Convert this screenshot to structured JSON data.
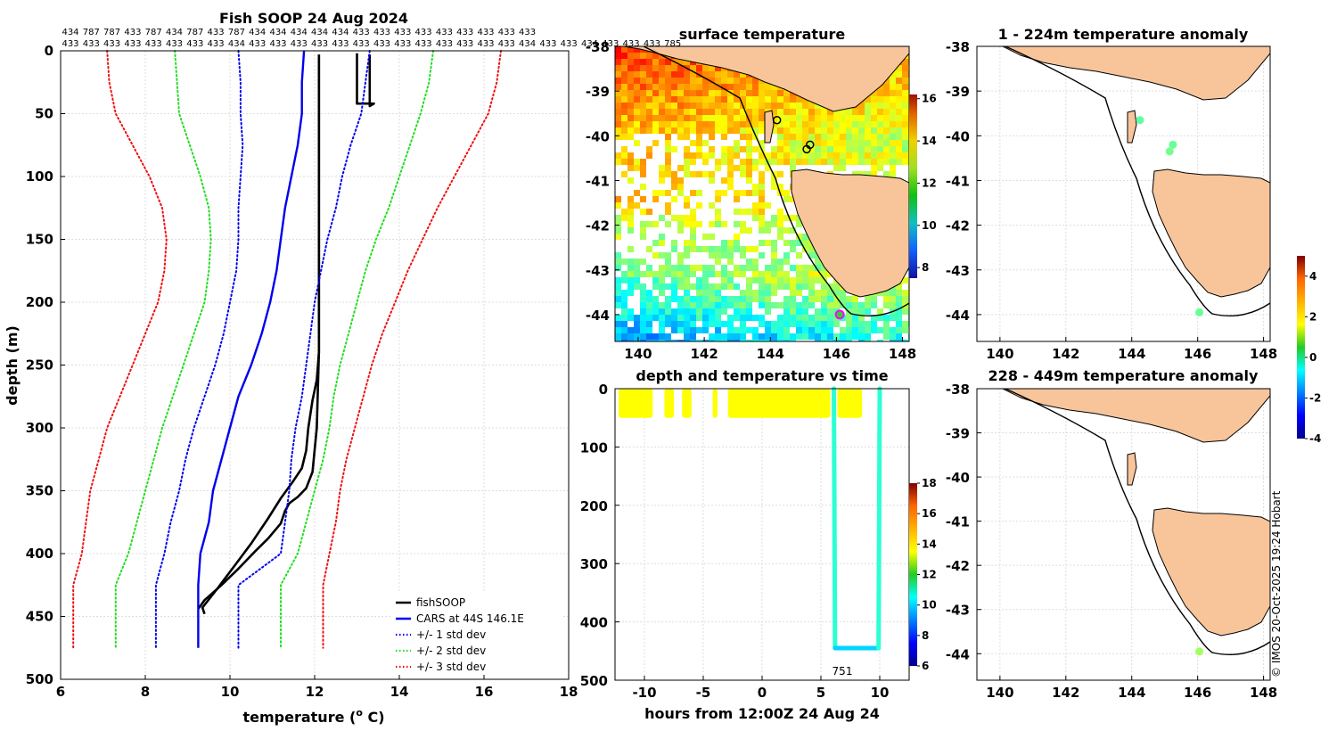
{
  "credit": "© IMOS 20-Oct-2025 19:24 Hobart",
  "chart_data": [
    {
      "type": "line",
      "title": "Fish SOOP 24 Aug 2024",
      "xlabel": "temperature (",
      "xlabel_sup": "o",
      "xlabel_end": " C)",
      "ylabel": "depth (m)",
      "xlim": [
        6,
        18
      ],
      "ylim": [
        0,
        500
      ],
      "xticks": [
        6,
        8,
        10,
        12,
        14,
        16,
        18
      ],
      "yticks": [
        0,
        50,
        100,
        150,
        200,
        250,
        300,
        350,
        400,
        450,
        500
      ],
      "grid": true,
      "legend_position": "bottom-right",
      "top_counts_row1": [
        "434",
        "787",
        "787",
        "433",
        "787",
        "434",
        "787",
        "433",
        "787",
        "434",
        "434",
        "434",
        "434",
        "434",
        "433",
        "433",
        "433",
        "433",
        "433",
        "433",
        "433",
        "433",
        "433"
      ],
      "top_counts_row2": [
        "433",
        "433",
        "433",
        "433",
        "433",
        "433",
        "433",
        "433",
        "434",
        "433",
        "433",
        "433",
        "433",
        "433",
        "433",
        "433",
        "433",
        "433",
        "433",
        "433",
        "433",
        "433",
        "434",
        "433",
        "433",
        "434",
        "433",
        "433",
        "433",
        "785"
      ],
      "series": [
        {
          "name": "fishSOOP",
          "color": "#000000",
          "style": "solid",
          "width": 2.6,
          "points": [
            [
              12.1,
              3
            ],
            [
              12.1,
              50
            ],
            [
              12.1,
              150
            ],
            [
              12.1,
              240
            ],
            [
              12.05,
              262
            ],
            [
              11.95,
              278
            ],
            [
              11.85,
              300
            ],
            [
              11.8,
              318
            ],
            [
              11.7,
              332
            ],
            [
              11.5,
              342
            ],
            [
              11.2,
              356
            ],
            [
              10.9,
              372
            ],
            [
              10.5,
              392
            ],
            [
              10.1,
              410
            ],
            [
              9.7,
              428
            ],
            [
              9.35,
              443
            ],
            [
              9.4,
              448
            ]
          ]
        },
        {
          "name": "fishSOOP",
          "color": "#000000",
          "style": "solid",
          "width": 2.6,
          "points": [
            [
              12.1,
              3
            ],
            [
              12.1,
              150
            ],
            [
              12.1,
              240
            ],
            [
              12.05,
              300
            ],
            [
              11.95,
              335
            ],
            [
              11.8,
              348
            ],
            [
              11.6,
              355
            ],
            [
              11.4,
              360
            ],
            [
              11.3,
              366
            ],
            [
              11.2,
              376
            ],
            [
              10.9,
              388
            ],
            [
              10.6,
              398
            ],
            [
              10.2,
              412
            ],
            [
              9.8,
              425
            ],
            [
              9.4,
              437
            ],
            [
              9.25,
              444
            ]
          ]
        },
        {
          "name": "fishSOOP",
          "color": "#000000",
          "style": "solid",
          "width": 2.6,
          "points": [
            [
              13.0,
              2
            ],
            [
              13.0,
              42
            ],
            [
              13.4,
              42
            ],
            [
              13.3,
              44
            ],
            [
              13.3,
              3
            ]
          ]
        },
        {
          "name": "CARS at 44S 146.1E",
          "color": "#0000ee",
          "style": "solid",
          "width": 2.4,
          "points": [
            [
              11.75,
              0
            ],
            [
              11.7,
              25
            ],
            [
              11.7,
              50
            ],
            [
              11.6,
              75
            ],
            [
              11.45,
              100
            ],
            [
              11.3,
              125
            ],
            [
              11.2,
              150
            ],
            [
              11.1,
              175
            ],
            [
              10.95,
              200
            ],
            [
              10.75,
              225
            ],
            [
              10.5,
              250
            ],
            [
              10.2,
              275
            ],
            [
              10.0,
              300
            ],
            [
              9.8,
              325
            ],
            [
              9.6,
              350
            ],
            [
              9.5,
              375
            ],
            [
              9.3,
              400
            ],
            [
              9.25,
              425
            ],
            [
              9.25,
              450
            ],
            [
              9.25,
              475
            ]
          ]
        },
        {
          "name": "+/- 1 std dev",
          "color": "#0000ee",
          "style": "dotted",
          "width": 2,
          "points": [
            [
              10.2,
              0
            ],
            [
              10.25,
              25
            ],
            [
              10.25,
              50
            ],
            [
              10.3,
              75
            ],
            [
              10.25,
              100
            ],
            [
              10.2,
              125
            ],
            [
              10.2,
              150
            ],
            [
              10.15,
              175
            ],
            [
              10.0,
              200
            ],
            [
              9.85,
              225
            ],
            [
              9.65,
              250
            ],
            [
              9.4,
              275
            ],
            [
              9.15,
              300
            ],
            [
              8.95,
              325
            ],
            [
              8.8,
              350
            ],
            [
              8.6,
              375
            ],
            [
              8.45,
              400
            ],
            [
              8.25,
              425
            ],
            [
              8.25,
              450
            ],
            [
              8.25,
              475
            ]
          ]
        },
        {
          "name": "+/- 1 std dev",
          "color": "#0000ee",
          "style": "dotted",
          "width": 2,
          "points": [
            [
              13.3,
              0
            ],
            [
              13.2,
              25
            ],
            [
              13.1,
              50
            ],
            [
              12.85,
              75
            ],
            [
              12.65,
              100
            ],
            [
              12.5,
              125
            ],
            [
              12.3,
              150
            ],
            [
              12.15,
              175
            ],
            [
              12.0,
              200
            ],
            [
              11.9,
              225
            ],
            [
              11.8,
              250
            ],
            [
              11.7,
              275
            ],
            [
              11.55,
              300
            ],
            [
              11.45,
              325
            ],
            [
              11.4,
              350
            ],
            [
              11.3,
              375
            ],
            [
              11.2,
              400
            ],
            [
              10.2,
              425
            ],
            [
              10.2,
              450
            ],
            [
              10.2,
              475
            ]
          ]
        },
        {
          "name": "+/- 2 std dev",
          "color": "#22dd22",
          "style": "dotted",
          "width": 2,
          "points": [
            [
              8.7,
              0
            ],
            [
              8.75,
              25
            ],
            [
              8.8,
              50
            ],
            [
              9.05,
              75
            ],
            [
              9.3,
              100
            ],
            [
              9.5,
              125
            ],
            [
              9.55,
              150
            ],
            [
              9.5,
              175
            ],
            [
              9.4,
              200
            ],
            [
              9.15,
              225
            ],
            [
              8.9,
              250
            ],
            [
              8.65,
              275
            ],
            [
              8.4,
              300
            ],
            [
              8.2,
              325
            ],
            [
              8.0,
              350
            ],
            [
              7.8,
              375
            ],
            [
              7.6,
              400
            ],
            [
              7.3,
              425
            ],
            [
              7.3,
              450
            ],
            [
              7.3,
              475
            ]
          ]
        },
        {
          "name": "+/- 2 std dev",
          "color": "#22dd22",
          "style": "dotted",
          "width": 2,
          "points": [
            [
              14.8,
              0
            ],
            [
              14.7,
              25
            ],
            [
              14.5,
              50
            ],
            [
              14.25,
              75
            ],
            [
              14.0,
              100
            ],
            [
              13.75,
              125
            ],
            [
              13.45,
              150
            ],
            [
              13.2,
              175
            ],
            [
              13.0,
              200
            ],
            [
              12.8,
              225
            ],
            [
              12.6,
              250
            ],
            [
              12.45,
              275
            ],
            [
              12.35,
              300
            ],
            [
              12.2,
              325
            ],
            [
              12.0,
              350
            ],
            [
              11.8,
              375
            ],
            [
              11.6,
              400
            ],
            [
              11.2,
              425
            ],
            [
              11.2,
              450
            ],
            [
              11.2,
              475
            ]
          ]
        },
        {
          "name": "+/- 3 std dev",
          "color": "#ee1111",
          "style": "dotted",
          "width": 2,
          "points": [
            [
              7.1,
              0
            ],
            [
              7.15,
              25
            ],
            [
              7.3,
              50
            ],
            [
              7.7,
              75
            ],
            [
              8.1,
              100
            ],
            [
              8.4,
              125
            ],
            [
              8.5,
              150
            ],
            [
              8.45,
              175
            ],
            [
              8.3,
              200
            ],
            [
              8.0,
              225
            ],
            [
              7.7,
              250
            ],
            [
              7.4,
              275
            ],
            [
              7.1,
              300
            ],
            [
              6.9,
              325
            ],
            [
              6.7,
              350
            ],
            [
              6.6,
              375
            ],
            [
              6.5,
              400
            ],
            [
              6.3,
              425
            ],
            [
              6.3,
              450
            ],
            [
              6.3,
              475
            ]
          ]
        },
        {
          "name": "+/- 3 std dev",
          "color": "#ee1111",
          "style": "dotted",
          "width": 2,
          "points": [
            [
              16.4,
              0
            ],
            [
              16.3,
              25
            ],
            [
              16.1,
              50
            ],
            [
              15.7,
              75
            ],
            [
              15.3,
              100
            ],
            [
              14.9,
              125
            ],
            [
              14.55,
              150
            ],
            [
              14.2,
              175
            ],
            [
              13.9,
              200
            ],
            [
              13.6,
              225
            ],
            [
              13.35,
              250
            ],
            [
              13.15,
              275
            ],
            [
              12.95,
              300
            ],
            [
              12.75,
              325
            ],
            [
              12.6,
              350
            ],
            [
              12.5,
              375
            ],
            [
              12.35,
              400
            ],
            [
              12.2,
              425
            ],
            [
              12.2,
              450
            ],
            [
              12.2,
              475
            ]
          ]
        }
      ],
      "legend": [
        {
          "label": "fishSOOP",
          "color": "#000000",
          "style": "solid"
        },
        {
          "label": "CARS at 44S 146.1E",
          "color": "#0000ee",
          "style": "solid"
        },
        {
          "label": "+/- 1 std dev",
          "color": "#0000ee",
          "style": "dotted"
        },
        {
          "label": "+/- 2 std dev",
          "color": "#22dd22",
          "style": "dotted"
        },
        {
          "label": "+/- 3 std dev",
          "color": "#ee1111",
          "style": "dotted"
        }
      ]
    },
    {
      "type": "heatmap",
      "title": "surface temperature",
      "xlim": [
        139.3,
        148.2
      ],
      "ylim": [
        -44.6,
        -38
      ],
      "xticks": [
        140,
        142,
        144,
        146,
        148
      ],
      "yticks": [
        -38,
        -39,
        -40,
        -41,
        -42,
        -43,
        -44
      ],
      "colorbar": {
        "min": 7.5,
        "max": 16.2,
        "ticks": [
          8,
          10,
          12,
          14,
          16
        ]
      },
      "markers": [
        {
          "lon": 144.2,
          "lat": -39.65,
          "label": "o"
        },
        {
          "lon": 145.2,
          "lat": -40.2,
          "label": "o"
        },
        {
          "lon": 145.1,
          "lat": -40.3,
          "label": "o"
        },
        {
          "lon": 146.1,
          "lat": -44.0,
          "label": "magenta circle"
        }
      ]
    },
    {
      "type": "scatter",
      "title": "depth and temperature vs time",
      "xlabel": "hours from 12:00Z 24 Aug 24",
      "xlim": [
        -12.5,
        12.5
      ],
      "ylim": [
        0,
        500
      ],
      "xticks": [
        -10,
        -5,
        0,
        5,
        10
      ],
      "xtick_labels": [
        "-10",
        "-5",
        "0",
        "5",
        "10"
      ],
      "yticks": [
        0,
        100,
        200,
        300,
        400,
        500
      ],
      "colorbar": {
        "min": 6,
        "max": 18,
        "ticks": [
          6,
          8,
          10,
          12,
          14,
          16,
          18
        ]
      },
      "annotation": "751",
      "shallow_segments": [
        [
          -12.2,
          -9.3
        ],
        [
          -8.3,
          -7.5
        ],
        [
          -6.8,
          -6.0
        ],
        [
          -4.2,
          -3.8
        ],
        [
          -2.9,
          5.8
        ],
        [
          6.4,
          8.5
        ]
      ],
      "shallow_depth": [
        0,
        50
      ],
      "shallow_temp": 13.5,
      "profile": {
        "t": [
          6.1,
          6.2,
          9.9,
          10.0
        ],
        "depth": [
          0,
          445,
          445,
          0
        ],
        "temp": [
          12.0,
          10.0,
          10.0,
          12.0
        ]
      }
    },
    {
      "type": "scatter",
      "title": "1 - 224m temperature anomaly",
      "xlim": [
        139.3,
        148.2
      ],
      "ylim": [
        -44.6,
        -38
      ],
      "xticks": [
        140,
        142,
        144,
        146,
        148
      ],
      "yticks": [
        -38,
        -39,
        -40,
        -41,
        -42,
        -43,
        -44
      ],
      "points": [
        {
          "lon": 144.25,
          "lat": -39.65,
          "anomaly": 0.2
        },
        {
          "lon": 145.25,
          "lat": -40.2,
          "anomaly": 0.3
        },
        {
          "lon": 145.15,
          "lat": -40.35,
          "anomaly": 0.4
        },
        {
          "lon": 146.05,
          "lat": -43.95,
          "anomaly": 0.3
        }
      ]
    },
    {
      "type": "scatter",
      "title": "228 - 449m temperature anomaly",
      "xlim": [
        139.3,
        148.2
      ],
      "ylim": [
        -44.6,
        -38
      ],
      "xticks": [
        140,
        142,
        144,
        146,
        148
      ],
      "yticks": [
        -38,
        -39,
        -40,
        -41,
        -42,
        -43,
        -44
      ],
      "colorbar": {
        "min": -4,
        "max": 5,
        "ticks": [
          -4,
          -2,
          0,
          2,
          4
        ]
      },
      "points": [
        {
          "lon": 146.05,
          "lat": -43.95,
          "anomaly": 0.8
        }
      ]
    }
  ]
}
